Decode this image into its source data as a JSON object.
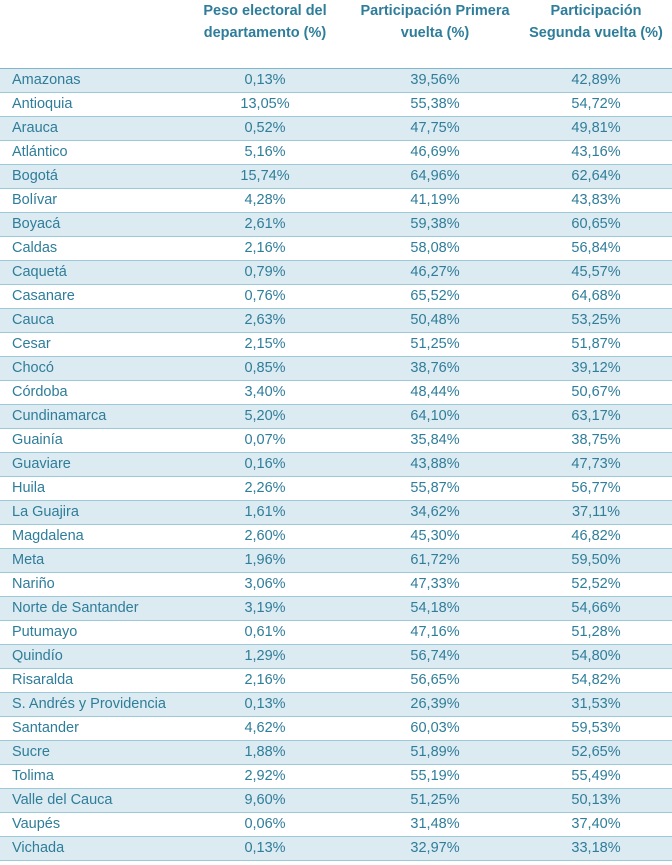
{
  "headers": [
    "",
    "Peso electoral del departamento (%)",
    "Participación Primera vuelta (%)",
    "Participación Segunda vuelta (%)"
  ],
  "rows": [
    [
      "Amazonas",
      "0,13%",
      "39,56%",
      "42,89%"
    ],
    [
      "Antioquia",
      "13,05%",
      "55,38%",
      "54,72%"
    ],
    [
      "Arauca",
      "0,52%",
      "47,75%",
      "49,81%"
    ],
    [
      "Atlántico",
      "5,16%",
      "46,69%",
      "43,16%"
    ],
    [
      "Bogotá",
      "15,74%",
      "64,96%",
      "62,64%"
    ],
    [
      "Bolívar",
      "4,28%",
      "41,19%",
      "43,83%"
    ],
    [
      "Boyacá",
      "2,61%",
      "59,38%",
      "60,65%"
    ],
    [
      "Caldas",
      "2,16%",
      "58,08%",
      "56,84%"
    ],
    [
      "Caquetá",
      "0,79%",
      "46,27%",
      "45,57%"
    ],
    [
      "Casanare",
      "0,76%",
      "65,52%",
      "64,68%"
    ],
    [
      "Cauca",
      "2,63%",
      "50,48%",
      "53,25%"
    ],
    [
      "Cesar",
      "2,15%",
      "51,25%",
      "51,87%"
    ],
    [
      "Chocó",
      "0,85%",
      "38,76%",
      "39,12%"
    ],
    [
      "Córdoba",
      "3,40%",
      "48,44%",
      "50,67%"
    ],
    [
      "Cundinamarca",
      "5,20%",
      "64,10%",
      "63,17%"
    ],
    [
      "Guainía",
      "0,07%",
      "35,84%",
      "38,75%"
    ],
    [
      "Guaviare",
      "0,16%",
      "43,88%",
      "47,73%"
    ],
    [
      "Huila",
      "2,26%",
      "55,87%",
      "56,77%"
    ],
    [
      "La Guajira",
      "1,61%",
      "34,62%",
      "37,11%"
    ],
    [
      "Magdalena",
      "2,60%",
      "45,30%",
      "46,82%"
    ],
    [
      "Meta",
      "1,96%",
      "61,72%",
      "59,50%"
    ],
    [
      "Nariño",
      "3,06%",
      "47,33%",
      "52,52%"
    ],
    [
      "Norte de Santander",
      "3,19%",
      "54,18%",
      "54,66%"
    ],
    [
      "Putumayo",
      "0,61%",
      "47,16%",
      "51,28%"
    ],
    [
      "Quindío",
      "1,29%",
      "56,74%",
      "54,80%"
    ],
    [
      "Risaralda",
      "2,16%",
      "56,65%",
      "54,82%"
    ],
    [
      "S. Andrés y Providencia",
      "0,13%",
      "26,39%",
      "31,53%"
    ],
    [
      "Santander",
      "4,62%",
      "60,03%",
      "59,53%"
    ],
    [
      "Sucre",
      "1,88%",
      "51,89%",
      "52,65%"
    ],
    [
      "Tolima",
      "2,92%",
      "55,19%",
      "55,49%"
    ],
    [
      "Valle del Cauca",
      "9,60%",
      "51,25%",
      "50,13%"
    ],
    [
      "Vaupés",
      "0,06%",
      "31,48%",
      "37,40%"
    ],
    [
      "Vichada",
      "0,13%",
      "32,97%",
      "33,18%"
    ]
  ]
}
